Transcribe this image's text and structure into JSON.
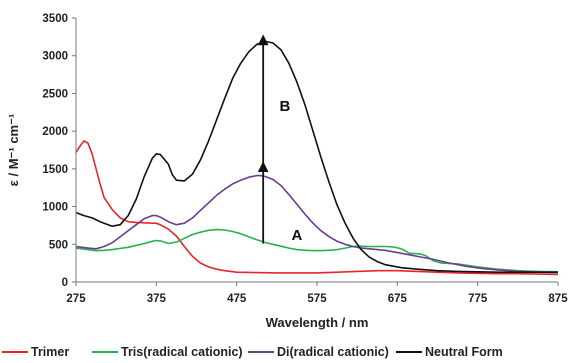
{
  "chart_data": {
    "type": "line",
    "xlabel": "Wavelength / nm",
    "ylabel": "ε / M⁻¹ cm⁻¹",
    "xlim": [
      275,
      875
    ],
    "ylim": [
      0,
      3500
    ],
    "xticks": [
      275,
      375,
      475,
      575,
      675,
      775,
      875
    ],
    "yticks": [
      0,
      500,
      1000,
      1500,
      2000,
      2500,
      3000,
      3500
    ],
    "grid": false,
    "legend_position": "bottom",
    "annotations": [
      {
        "text": "A",
        "arrow_from": [
          508,
          510
        ],
        "arrow_to": [
          508,
          1530
        ],
        "label_at": [
          550,
          560
        ]
      },
      {
        "text": "B",
        "arrow_from": [
          508,
          1540
        ],
        "arrow_to": [
          508,
          3210
        ],
        "label_at": [
          535,
          2270
        ]
      }
    ],
    "series": [
      {
        "name": "Trimer",
        "color": "#e8262a",
        "points": [
          [
            275,
            1720
          ],
          [
            280,
            1800
          ],
          [
            285,
            1870
          ],
          [
            290,
            1840
          ],
          [
            295,
            1700
          ],
          [
            300,
            1500
          ],
          [
            305,
            1300
          ],
          [
            310,
            1120
          ],
          [
            320,
            960
          ],
          [
            330,
            850
          ],
          [
            340,
            800
          ],
          [
            350,
            790
          ],
          [
            360,
            785
          ],
          [
            370,
            780
          ],
          [
            375,
            780
          ],
          [
            380,
            760
          ],
          [
            390,
            700
          ],
          [
            400,
            610
          ],
          [
            410,
            470
          ],
          [
            420,
            340
          ],
          [
            430,
            250
          ],
          [
            440,
            200
          ],
          [
            450,
            170
          ],
          [
            460,
            150
          ],
          [
            475,
            130
          ],
          [
            500,
            125
          ],
          [
            525,
            120
          ],
          [
            550,
            120
          ],
          [
            575,
            120
          ],
          [
            600,
            130
          ],
          [
            625,
            140
          ],
          [
            650,
            150
          ],
          [
            675,
            150
          ],
          [
            700,
            140
          ],
          [
            725,
            130
          ],
          [
            750,
            120
          ],
          [
            775,
            115
          ],
          [
            800,
            110
          ],
          [
            825,
            110
          ],
          [
            850,
            105
          ],
          [
            875,
            100
          ]
        ]
      },
      {
        "name": "Tris(radical cationic)",
        "color": "#2bb14c",
        "points": [
          [
            275,
            450
          ],
          [
            290,
            430
          ],
          [
            300,
            415
          ],
          [
            310,
            420
          ],
          [
            320,
            430
          ],
          [
            340,
            460
          ],
          [
            360,
            510
          ],
          [
            370,
            540
          ],
          [
            375,
            550
          ],
          [
            380,
            545
          ],
          [
            390,
            510
          ],
          [
            400,
            530
          ],
          [
            410,
            580
          ],
          [
            420,
            630
          ],
          [
            430,
            660
          ],
          [
            440,
            685
          ],
          [
            450,
            695
          ],
          [
            460,
            690
          ],
          [
            470,
            670
          ],
          [
            480,
            640
          ],
          [
            490,
            600
          ],
          [
            500,
            560
          ],
          [
            510,
            525
          ],
          [
            520,
            500
          ],
          [
            530,
            475
          ],
          [
            540,
            450
          ],
          [
            550,
            430
          ],
          [
            560,
            420
          ],
          [
            575,
            415
          ],
          [
            590,
            420
          ],
          [
            600,
            430
          ],
          [
            610,
            450
          ],
          [
            620,
            470
          ],
          [
            630,
            475
          ],
          [
            640,
            470
          ],
          [
            650,
            470
          ],
          [
            660,
            470
          ],
          [
            670,
            465
          ],
          [
            680,
            440
          ],
          [
            690,
            380
          ],
          [
            700,
            375
          ],
          [
            705,
            370
          ],
          [
            710,
            350
          ],
          [
            720,
            280
          ],
          [
            730,
            250
          ],
          [
            750,
            240
          ],
          [
            775,
            200
          ],
          [
            800,
            170
          ],
          [
            825,
            150
          ],
          [
            850,
            140
          ],
          [
            875,
            135
          ]
        ]
      },
      {
        "name": "Di(radical cationic)",
        "color": "#6c3b94",
        "points": [
          [
            275,
            470
          ],
          [
            290,
            450
          ],
          [
            300,
            440
          ],
          [
            310,
            470
          ],
          [
            320,
            520
          ],
          [
            330,
            600
          ],
          [
            340,
            680
          ],
          [
            350,
            760
          ],
          [
            360,
            840
          ],
          [
            370,
            880
          ],
          [
            375,
            880
          ],
          [
            380,
            860
          ],
          [
            390,
            800
          ],
          [
            400,
            760
          ],
          [
            410,
            780
          ],
          [
            420,
            850
          ],
          [
            430,
            950
          ],
          [
            440,
            1050
          ],
          [
            450,
            1150
          ],
          [
            460,
            1230
          ],
          [
            470,
            1300
          ],
          [
            480,
            1350
          ],
          [
            490,
            1390
          ],
          [
            500,
            1410
          ],
          [
            505,
            1410
          ],
          [
            510,
            1400
          ],
          [
            520,
            1360
          ],
          [
            530,
            1280
          ],
          [
            540,
            1160
          ],
          [
            550,
            1030
          ],
          [
            560,
            900
          ],
          [
            570,
            780
          ],
          [
            580,
            680
          ],
          [
            590,
            600
          ],
          [
            600,
            540
          ],
          [
            610,
            500
          ],
          [
            620,
            470
          ],
          [
            630,
            450
          ],
          [
            640,
            440
          ],
          [
            650,
            430
          ],
          [
            660,
            420
          ],
          [
            670,
            400
          ],
          [
            680,
            380
          ],
          [
            690,
            360
          ],
          [
            700,
            340
          ],
          [
            710,
            320
          ],
          [
            720,
            300
          ],
          [
            740,
            250
          ],
          [
            760,
            210
          ],
          [
            780,
            180
          ],
          [
            800,
            160
          ],
          [
            825,
            140
          ],
          [
            850,
            130
          ],
          [
            875,
            125
          ]
        ]
      },
      {
        "name": "Neutral Form",
        "color": "#111111",
        "points": [
          [
            275,
            920
          ],
          [
            285,
            880
          ],
          [
            295,
            850
          ],
          [
            305,
            800
          ],
          [
            315,
            760
          ],
          [
            320,
            740
          ],
          [
            330,
            760
          ],
          [
            340,
            880
          ],
          [
            350,
            1100
          ],
          [
            360,
            1400
          ],
          [
            370,
            1640
          ],
          [
            375,
            1700
          ],
          [
            380,
            1690
          ],
          [
            390,
            1560
          ],
          [
            395,
            1420
          ],
          [
            400,
            1350
          ],
          [
            410,
            1340
          ],
          [
            420,
            1430
          ],
          [
            430,
            1620
          ],
          [
            440,
            1870
          ],
          [
            450,
            2150
          ],
          [
            460,
            2430
          ],
          [
            470,
            2700
          ],
          [
            480,
            2900
          ],
          [
            490,
            3050
          ],
          [
            500,
            3150
          ],
          [
            510,
            3190
          ],
          [
            520,
            3170
          ],
          [
            530,
            3080
          ],
          [
            540,
            2900
          ],
          [
            550,
            2650
          ],
          [
            560,
            2350
          ],
          [
            570,
            2000
          ],
          [
            580,
            1650
          ],
          [
            590,
            1320
          ],
          [
            600,
            1020
          ],
          [
            610,
            780
          ],
          [
            620,
            580
          ],
          [
            630,
            430
          ],
          [
            640,
            330
          ],
          [
            650,
            270
          ],
          [
            660,
            230
          ],
          [
            680,
            190
          ],
          [
            700,
            170
          ],
          [
            725,
            150
          ],
          [
            750,
            140
          ],
          [
            775,
            135
          ],
          [
            800,
            130
          ],
          [
            825,
            130
          ],
          [
            850,
            130
          ],
          [
            875,
            130
          ]
        ]
      }
    ]
  }
}
